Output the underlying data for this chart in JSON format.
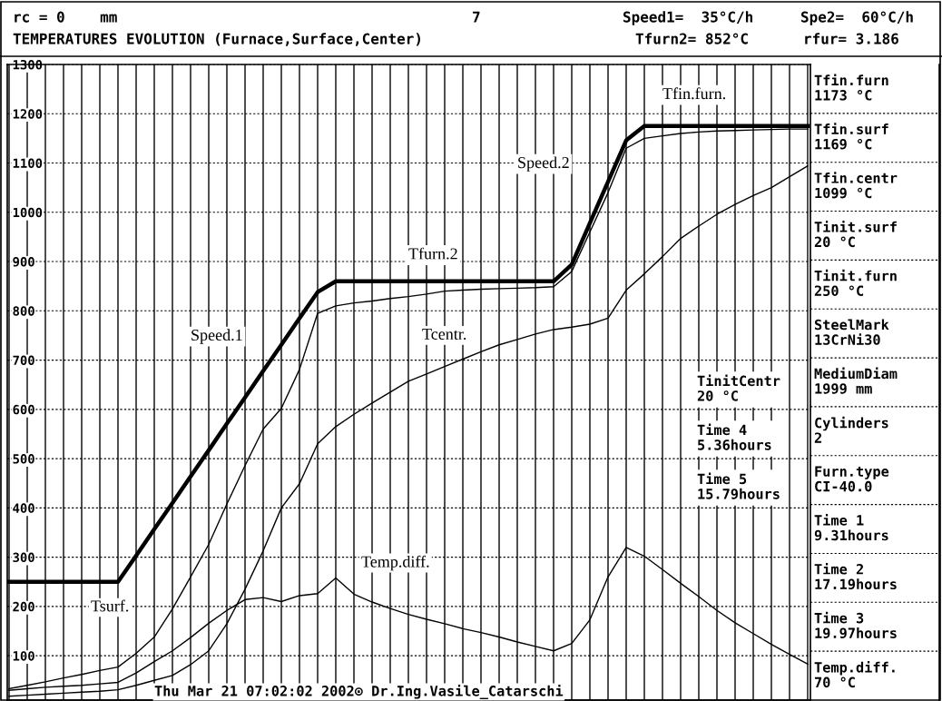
{
  "chart_data": {
    "type": "line",
    "title": "TEMPERATURES EVOLUTION (Furnace,Surface,Center)",
    "categories": [
      null,
      null,
      null,
      null,
      null,
      null,
      null,
      null,
      null,
      null,
      null,
      null,
      null,
      null,
      null,
      null,
      null,
      null,
      null,
      null,
      null,
      null,
      null,
      null,
      null,
      null,
      null,
      null,
      null,
      null,
      null,
      null,
      null,
      null,
      null,
      null,
      null,
      null,
      null,
      null,
      null,
      null,
      null,
      null,
      null
    ],
    "series": [
      {
        "color": "#000000",
        "values": [
          250,
          250,
          250,
          250,
          250,
          250,
          250,
          303,
          357,
          410,
          464,
          517,
          571,
          624,
          678,
          731,
          785,
          838,
          860,
          860,
          860,
          860,
          860,
          860,
          860,
          860,
          860,
          860,
          860,
          860,
          860,
          894,
          978,
          1062,
          1146,
          1175,
          1175,
          1175,
          1175,
          1175,
          1175,
          1175,
          1175,
          1175,
          1175
        ]
      },
      {
        "name": "Tsurf.",
        "color": "#000000",
        "values": [
          33,
          40,
          47,
          55,
          62,
          70,
          77,
          105,
          138,
          195,
          260,
          326,
          408,
          486,
          560,
          602,
          681,
          795,
          810,
          816,
          820,
          825,
          829,
          834,
          840,
          842,
          844,
          845,
          846,
          847,
          849,
          880,
          960,
          1040,
          1130,
          1150,
          1155,
          1160,
          1163,
          1165,
          1166,
          1167,
          1168,
          1169,
          1169
        ]
      },
      {
        "name": "Tcentr.",
        "color": "#000000",
        "values": [
          18,
          20,
          22,
          24,
          26,
          28,
          31,
          40,
          50,
          60,
          82,
          110,
          165,
          235,
          313,
          400,
          449,
          530,
          565,
          590,
          613,
          635,
          657,
          672,
          687,
          702,
          717,
          731,
          742,
          753,
          762,
          767,
          773,
          785,
          842,
          875,
          910,
          947,
          972,
          996,
          1016,
          1034,
          1050,
          1072,
          1094
        ]
      },
      {
        "name": "Temp.diff.",
        "color": "#000000",
        "values": [
          30,
          33,
          36,
          38,
          40,
          43,
          46,
          65,
          88,
          110,
          137,
          166,
          192,
          214,
          218,
          210,
          222,
          226,
          258,
          225,
          209,
          196,
          184,
          174,
          165,
          155,
          147,
          138,
          128,
          119,
          110,
          125,
          173,
          260,
          320,
          302,
          275,
          247,
          220,
          192,
          167,
          145,
          123,
          103,
          83
        ]
      }
    ],
    "ylim": [
      10,
      1300
    ],
    "yticks": [
      100,
      200,
      300,
      400,
      500,
      600,
      700,
      800,
      900,
      1000,
      1100,
      1200,
      1300
    ],
    "grid": true,
    "line_style": "solid",
    "marker": "none",
    "annotations": [
      "rc = 0    mm",
      "7",
      "Speed1=  35°C/h",
      "Spe2=  60°C/h",
      "Tfurn2= 852°C",
      "rfur= 3.186",
      "Tfin.furn\n1173 °C",
      "Tfin.surf\n1169 °C",
      "Tfin.centr\n1099 °C",
      "Tinit.surf\n20 °C",
      "Tinit.furn\n250 °C",
      "SteelMark\n13CrNi30",
      "MediumDiam\n1999 mm",
      "Cylinders\n2",
      "Furn.type\nCI-40.0",
      "Time 1\n9.31hours",
      "Time 2\n17.19hours",
      "Time 3\n19.97hours",
      "Temp.diff.\n70 °C",
      "TinitCentr\n20 °C",
      "Time 4\n5.36hours",
      "Time 5\n15.79hours",
      "Thu Mar 21 07:02:02 2002⊙ Dr.Ing.Vasile_Catarschi",
      "Speed.1",
      "Tfurn.2",
      "Speed.2",
      "Tfin.furn."
    ]
  }
}
